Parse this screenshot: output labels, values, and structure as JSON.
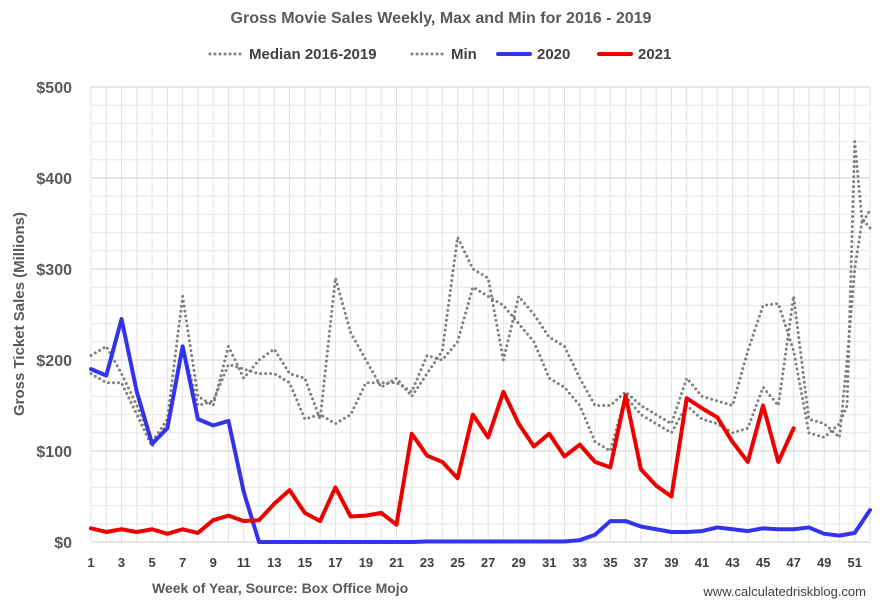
{
  "chart_data": {
    "type": "line",
    "title": "Gross Movie Sales Weekly, Max and Min for 2016 - 2019",
    "xlabel": "Week of Year, Source: Box Office Mojo",
    "ylabel": "Gross Ticket Sales (Millions)",
    "credit": "www.calculatedriskblog.com",
    "xlim": [
      1,
      52
    ],
    "ylim": [
      0,
      500
    ],
    "x_ticks": [
      1,
      3,
      5,
      7,
      9,
      11,
      13,
      15,
      17,
      19,
      21,
      23,
      25,
      27,
      29,
      31,
      33,
      35,
      37,
      39,
      41,
      43,
      45,
      47,
      49,
      51
    ],
    "y_ticks": [
      {
        "value": 0,
        "label": "$0"
      },
      {
        "value": 100,
        "label": "$100"
      },
      {
        "value": 200,
        "label": "$200"
      },
      {
        "value": 300,
        "label": "$300"
      },
      {
        "value": 400,
        "label": "$400"
      },
      {
        "value": 500,
        "label": "$500"
      }
    ],
    "grid": true,
    "legend_position": "top",
    "series": [
      {
        "name": "Median 2016-2019",
        "color": "#808080",
        "style": "dotted",
        "x": [
          1,
          2,
          3,
          4,
          5,
          6,
          7,
          8,
          9,
          10,
          11,
          12,
          13,
          14,
          15,
          16,
          17,
          18,
          19,
          20,
          21,
          22,
          23,
          24,
          25,
          26,
          27,
          28,
          29,
          30,
          31,
          32,
          33,
          34,
          35,
          36,
          37,
          38,
          39,
          40,
          41,
          42,
          43,
          44,
          45,
          46,
          47,
          48,
          49,
          50,
          50.5,
          51,
          51.5,
          52
        ],
        "values": [
          205,
          215,
          185,
          150,
          110,
          135,
          270,
          160,
          150,
          215,
          180,
          200,
          212,
          185,
          180,
          135,
          290,
          230,
          200,
          170,
          180,
          160,
          185,
          210,
          335,
          300,
          290,
          200,
          270,
          250,
          225,
          215,
          180,
          150,
          150,
          165,
          150,
          140,
          130,
          180,
          160,
          155,
          150,
          210,
          260,
          262,
          210,
          120,
          115,
          130,
          150,
          440,
          350,
          365
        ]
      },
      {
        "name": "Min",
        "color": "#808080",
        "style": "dotted",
        "x": [
          1,
          2,
          3,
          4,
          5,
          6,
          7,
          8,
          9,
          10,
          11,
          12,
          13,
          14,
          15,
          16,
          17,
          18,
          19,
          20,
          21,
          22,
          23,
          24,
          25,
          26,
          27,
          28,
          29,
          30,
          31,
          32,
          33,
          34,
          35,
          36,
          37,
          38,
          39,
          40,
          41,
          42,
          43,
          44,
          45,
          46,
          47,
          48,
          49,
          50,
          50.5,
          51,
          51.5,
          52
        ],
        "values": [
          185,
          175,
          175,
          140,
          105,
          130,
          215,
          150,
          155,
          195,
          190,
          185,
          185,
          175,
          135,
          140,
          130,
          140,
          175,
          175,
          175,
          165,
          205,
          200,
          220,
          280,
          270,
          260,
          240,
          220,
          180,
          170,
          150,
          110,
          100,
          160,
          140,
          130,
          120,
          150,
          135,
          130,
          120,
          125,
          170,
          150,
          270,
          135,
          130,
          115,
          200,
          300,
          355,
          345
        ]
      },
      {
        "name": "2020",
        "color": "#3333ee",
        "style": "solid",
        "x": [
          1,
          2,
          3,
          4,
          5,
          6,
          7,
          8,
          9,
          10,
          11,
          12,
          13,
          14,
          15,
          16,
          17,
          18,
          19,
          20,
          21,
          22,
          23,
          24,
          25,
          26,
          27,
          28,
          29,
          30,
          31,
          32,
          33,
          34,
          35,
          36,
          37,
          38,
          39,
          40,
          41,
          42,
          43,
          44,
          45,
          46,
          47,
          48,
          49,
          50,
          51,
          52
        ],
        "values": [
          190,
          183,
          245,
          165,
          108,
          125,
          215,
          135,
          128,
          133,
          55,
          0,
          0,
          0,
          0,
          0,
          0,
          0,
          0,
          0,
          0,
          0,
          0.5,
          0.5,
          0.5,
          0.5,
          0.5,
          0.5,
          0.5,
          0.5,
          0.5,
          0.5,
          2,
          8,
          23,
          23,
          17,
          14,
          11,
          11,
          12,
          16,
          14,
          12,
          15,
          14,
          14,
          16,
          9,
          7,
          10,
          35
        ]
      },
      {
        "name": "2021",
        "color": "#ee0000",
        "style": "solid",
        "x": [
          1,
          2,
          3,
          4,
          5,
          6,
          7,
          8,
          9,
          10,
          11,
          12,
          13,
          14,
          15,
          16,
          17,
          18,
          19,
          20,
          21,
          22,
          23,
          24,
          25,
          26,
          27,
          28,
          29,
          30,
          31,
          32,
          33,
          34,
          35,
          36,
          37,
          38,
          39,
          40,
          41,
          42,
          43,
          44,
          45,
          46,
          47
        ],
        "values": [
          15,
          11,
          14,
          11,
          14,
          9,
          14,
          10,
          24,
          29,
          23,
          24,
          42,
          57,
          32,
          23,
          60,
          28,
          29,
          32,
          19,
          119,
          95,
          88,
          70,
          140,
          115,
          165,
          130,
          105,
          119,
          94,
          107,
          88,
          82,
          161,
          80,
          62,
          50,
          158,
          147,
          137,
          110,
          88,
          150,
          88,
          125
        ]
      }
    ]
  }
}
